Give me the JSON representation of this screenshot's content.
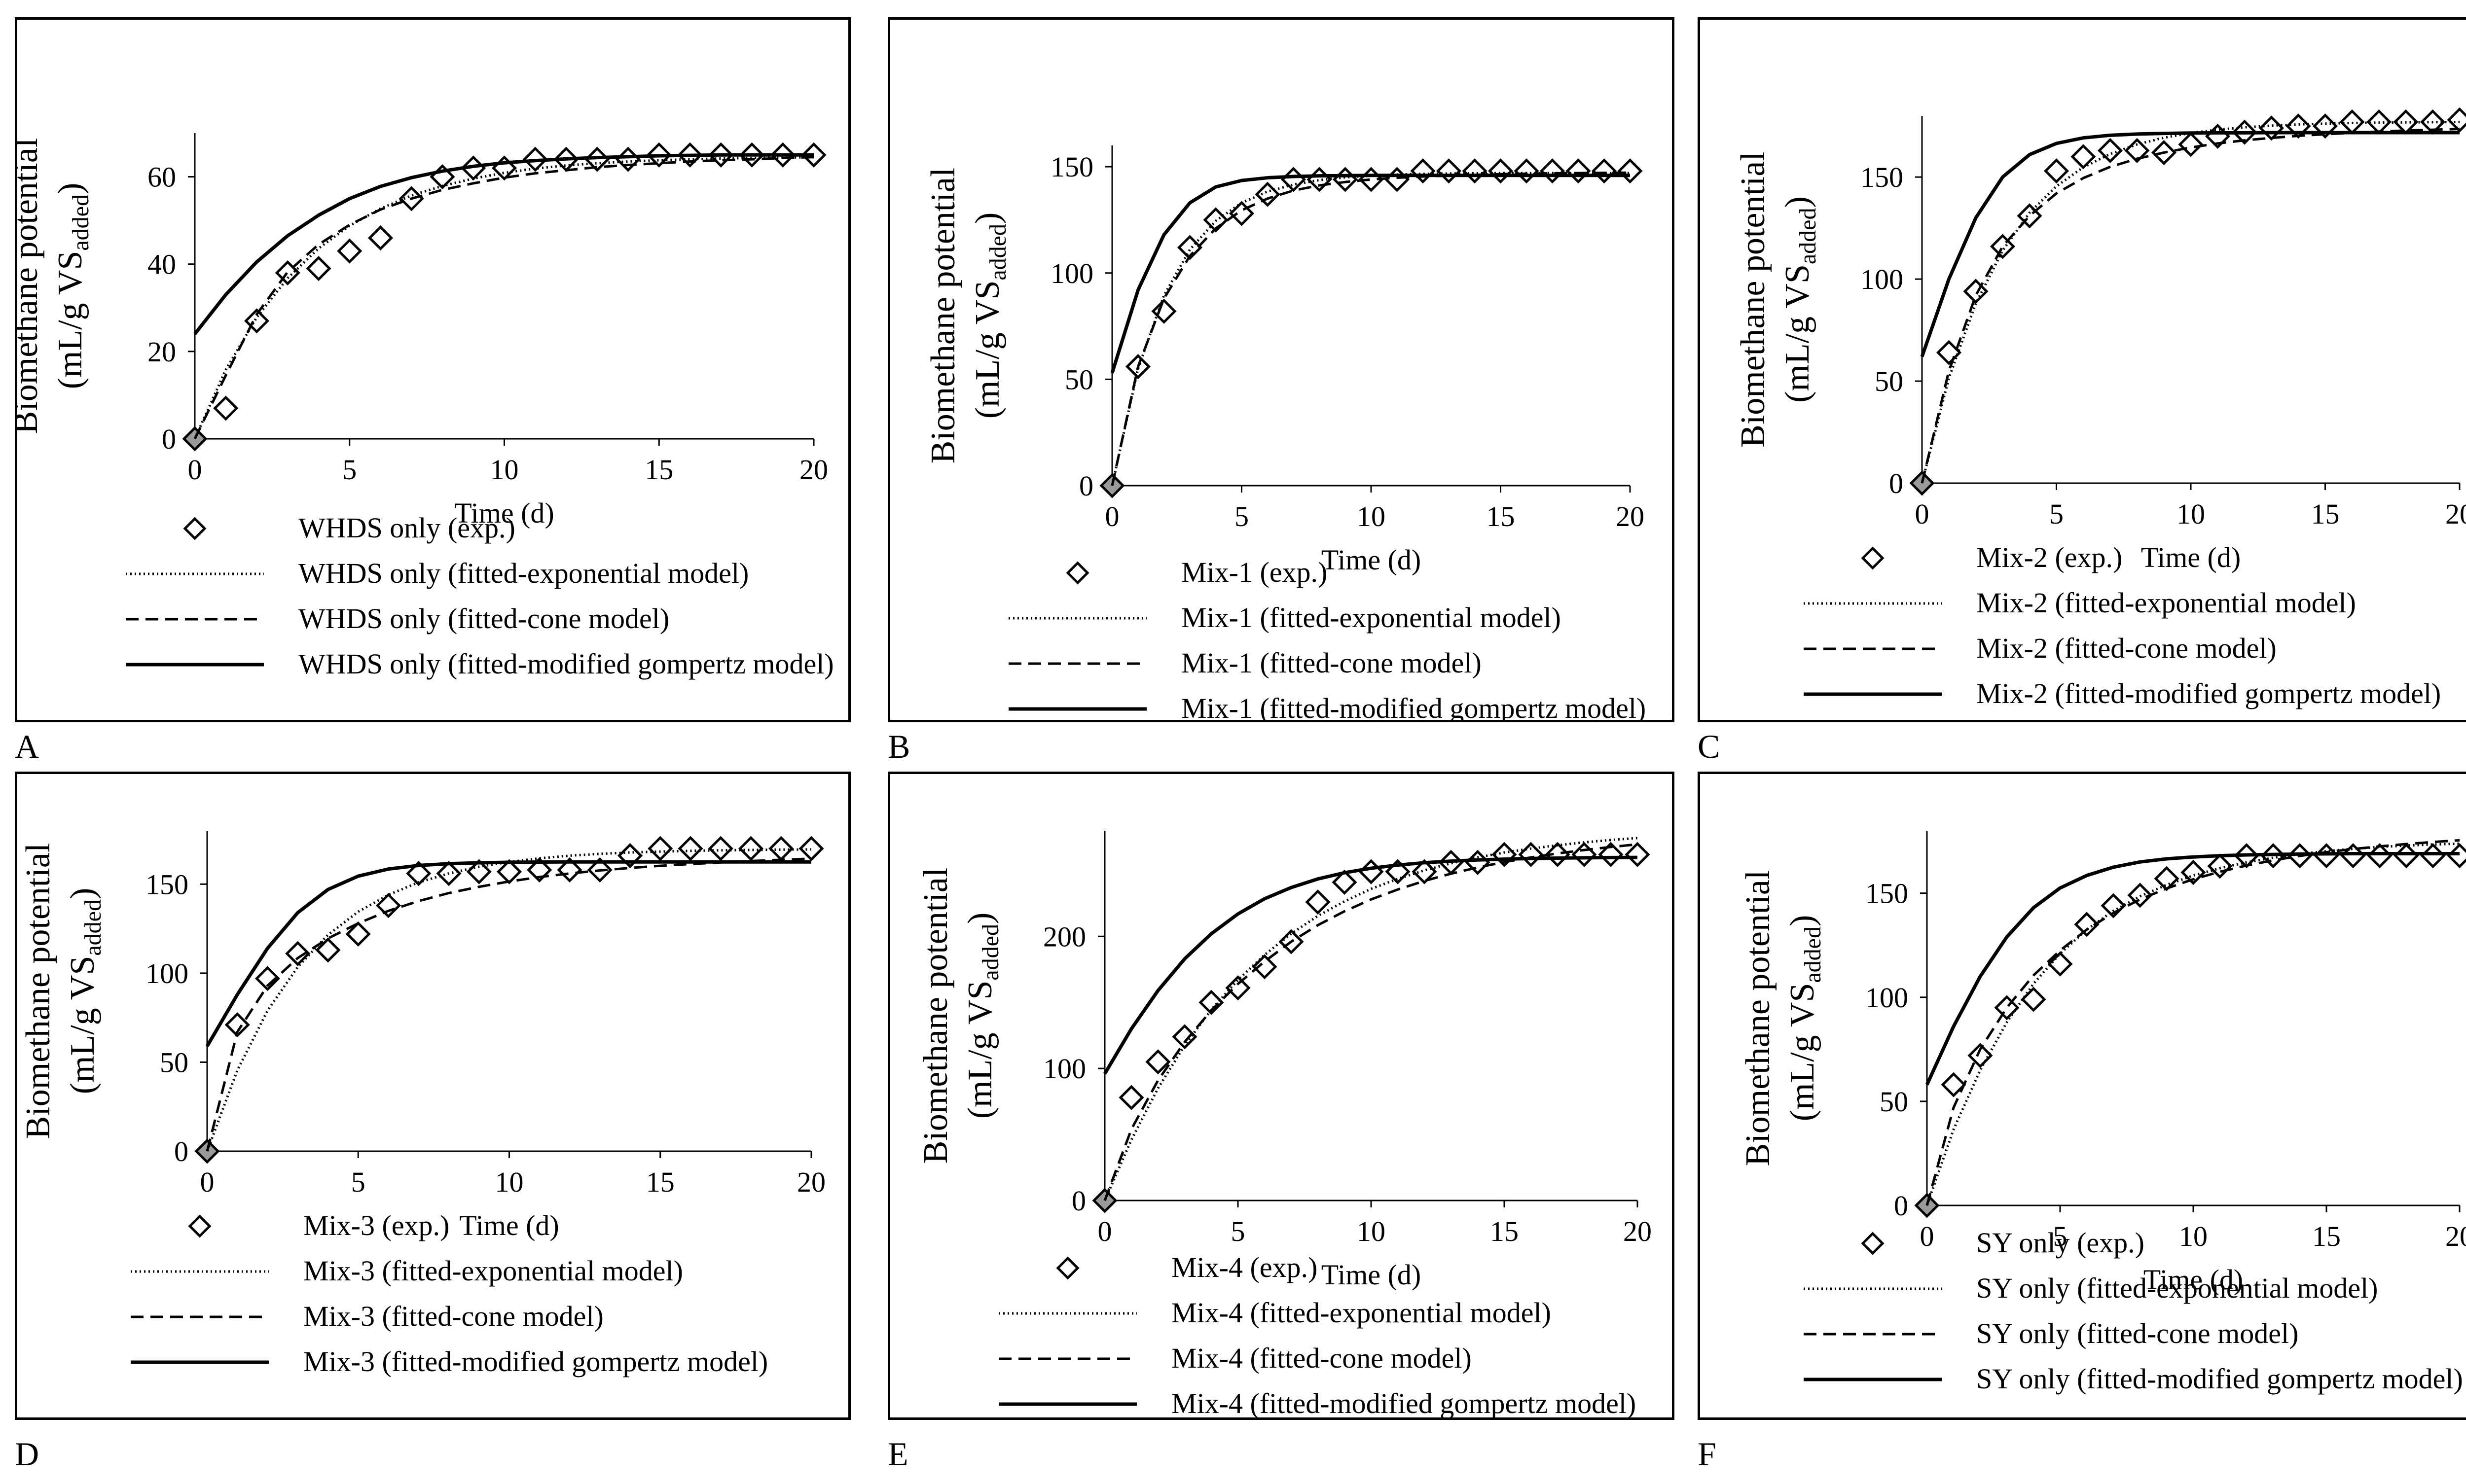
{
  "panel_labels": [
    "A",
    "B",
    "C",
    "D",
    "E",
    "F"
  ],
  "shared": {
    "ylabel_line1": "Biomethane potential",
    "ylabel_prefix": "(mL/g VS",
    "ylabel_sub": "added",
    "ylabel_suffix": ")",
    "xlabel": "Time (d)",
    "x_ticks": [
      "0",
      "5",
      "10",
      "15",
      "20"
    ]
  },
  "chart_data": [
    {
      "type": "scatter+line",
      "panel": "A",
      "xlabel": "Time (d)",
      "ylabel": "Biomethane potential (mL/g VSadded)",
      "xlim": [
        0,
        20
      ],
      "ylim": [
        0,
        70
      ],
      "y_ticks": [
        "0",
        "20",
        "40",
        "60"
      ],
      "x": [
        0,
        1,
        2,
        3,
        4,
        5,
        6,
        7,
        8,
        9,
        10,
        11,
        12,
        13,
        14,
        15,
        16,
        17,
        18,
        19,
        20
      ],
      "series": [
        {
          "name": "WHDS only (exp.)",
          "style": "diamond",
          "values": [
            0,
            7,
            27,
            38,
            39,
            43,
            46,
            55,
            60,
            62,
            62,
            64,
            64,
            64,
            64,
            65,
            65,
            65,
            65,
            65,
            65
          ]
        },
        {
          "name": "WHDS only (fitted-exponential model)",
          "style": "dotted",
          "values": [
            0,
            15.8,
            27.8,
            36.8,
            43.6,
            48.8,
            52.7,
            55.7,
            57.9,
            59.6,
            60.9,
            61.9,
            62.6,
            63.1,
            63.5,
            63.8,
            64.0,
            64.2,
            64.3,
            64.4,
            64.5
          ]
        },
        {
          "name": "WHDS only (fitted-cone model)",
          "style": "dashed",
          "values": [
            0,
            14.5,
            28.5,
            38.2,
            44.5,
            49,
            52.5,
            55,
            57,
            58.5,
            59.8,
            60.8,
            61.5,
            62.2,
            62.7,
            63.1,
            63.5,
            63.8,
            64,
            64.3,
            64.5
          ]
        },
        {
          "name": "WHDS only (fitted-modified gompertz model)",
          "style": "solid",
          "values": [
            24,
            33,
            40.5,
            46.5,
            51.2,
            55,
            57.8,
            59.8,
            61.3,
            62.4,
            63.2,
            63.7,
            64.1,
            64.4,
            64.6,
            64.8,
            64.9,
            65,
            65,
            65,
            65
          ]
        }
      ]
    },
    {
      "type": "scatter+line",
      "panel": "B",
      "xlabel": "Time (d)",
      "ylabel": "Biomethane potential (mL/g VSadded)",
      "xlim": [
        0,
        20
      ],
      "ylim": [
        0,
        160
      ],
      "y_ticks": [
        "0",
        "50",
        "100",
        "150"
      ],
      "x": [
        0,
        1,
        2,
        3,
        4,
        5,
        6,
        7,
        8,
        9,
        10,
        11,
        12,
        13,
        14,
        15,
        16,
        17,
        18,
        19,
        20
      ],
      "series": [
        {
          "name": "Mix-1 (exp.)",
          "style": "diamond",
          "values": [
            0,
            56,
            82,
            112,
            125,
            128,
            137,
            144,
            144,
            144,
            144,
            144,
            148,
            148,
            148,
            148,
            148,
            148,
            148,
            148,
            148
          ]
        },
        {
          "name": "Mix-1 (fitted-exponential model)",
          "style": "dotted",
          "values": [
            0,
            55,
            89.5,
            111,
            124.5,
            133,
            138.3,
            141.6,
            143.7,
            145,
            145.8,
            146.3,
            146.6,
            146.8,
            146.9,
            147,
            147,
            147,
            147,
            147,
            147
          ]
        },
        {
          "name": "Mix-1 (fitted-cone model)",
          "style": "dashed",
          "values": [
            0,
            56,
            88,
            108,
            121,
            129.5,
            135,
            138.8,
            141.2,
            142.8,
            144,
            144.8,
            145.4,
            145.8,
            146.2,
            146.5,
            146.7,
            146.9,
            147,
            147.1,
            147.2
          ]
        },
        {
          "name": "Mix-1 (fitted-modified gompertz model)",
          "style": "solid",
          "values": [
            53,
            92,
            118,
            133,
            140.5,
            143.5,
            144.8,
            145.4,
            145.7,
            145.8,
            145.9,
            145.9,
            145.9,
            145.9,
            145.9,
            145.9,
            145.9,
            145.9,
            145.9,
            145.9,
            145.9
          ]
        }
      ]
    },
    {
      "type": "scatter+line",
      "panel": "C",
      "xlabel": "Time (d)",
      "ylabel": "Biomethane potential (mL/g VSadded)",
      "xlim": [
        0,
        20
      ],
      "ylim": [
        0,
        180
      ],
      "y_ticks": [
        "0",
        "50",
        "100",
        "150"
      ],
      "x": [
        0,
        1,
        2,
        3,
        4,
        5,
        6,
        7,
        8,
        9,
        10,
        11,
        12,
        13,
        14,
        15,
        16,
        17,
        18,
        19,
        20
      ],
      "series": [
        {
          "name": "Mix-2 (exp.)",
          "style": "diamond",
          "values": [
            0,
            64,
            94,
            116,
            131,
            153,
            160,
            163,
            163,
            162,
            166,
            170,
            172,
            174,
            175,
            175,
            177,
            177,
            177,
            177,
            178
          ]
        },
        {
          "name": "Mix-2 (fitted-exponential model)",
          "style": "dotted",
          "values": [
            0,
            51.5,
            88,
            114,
            132.5,
            145.5,
            154.8,
            161.3,
            166,
            169.3,
            171.6,
            173.2,
            174.4,
            175.2,
            175.8,
            176.2,
            176.5,
            176.7,
            176.8,
            176.9,
            177
          ]
        },
        {
          "name": "Mix-2 (fitted-cone model)",
          "style": "dashed",
          "values": [
            0,
            55,
            92,
            116,
            131,
            142,
            149.5,
            155,
            159,
            162,
            164.5,
            166.5,
            168,
            169.2,
            170.2,
            171,
            171.7,
            172.3,
            172.8,
            173.2,
            173.6
          ]
        },
        {
          "name": "Mix-2 (fitted-modified gompertz model)",
          "style": "solid",
          "values": [
            62,
            100,
            130,
            150,
            161,
            166.5,
            169.2,
            170.5,
            171.1,
            171.4,
            171.6,
            171.7,
            171.7,
            171.8,
            171.8,
            171.8,
            171.8,
            171.8,
            171.8,
            171.8,
            171.8
          ]
        }
      ]
    },
    {
      "type": "scatter+line",
      "panel": "D",
      "xlabel": "Time (d)",
      "ylabel": "Biomethane potential (mL/g VSadded)",
      "xlim": [
        0,
        20
      ],
      "ylim": [
        0,
        180
      ],
      "y_ticks": [
        "0",
        "50",
        "100",
        "150"
      ],
      "x": [
        0,
        1,
        2,
        3,
        4,
        5,
        6,
        7,
        8,
        9,
        10,
        11,
        12,
        13,
        14,
        15,
        16,
        17,
        18,
        19,
        20
      ],
      "series": [
        {
          "name": "Mix-3 (exp.)",
          "style": "diamond",
          "values": [
            0,
            71,
            97,
            111,
            113,
            122,
            138,
            156,
            156,
            157,
            157,
            158,
            158,
            158,
            166,
            170,
            170,
            170,
            170,
            170,
            170
          ]
        },
        {
          "name": "Mix-3 (fitted-exponential model)",
          "style": "dotted",
          "values": [
            0,
            45.5,
            79,
            103.5,
            121.5,
            134.5,
            144,
            151,
            156,
            159.8,
            162.5,
            164.5,
            166,
            167,
            167.8,
            168.3,
            168.7,
            169,
            169.2,
            169.4,
            169.5
          ]
        },
        {
          "name": "Mix-3 (fitted-cone model)",
          "style": "dashed",
          "values": [
            0,
            67,
            93,
            108.5,
            119.5,
            128,
            135,
            140.5,
            145,
            148.5,
            151.5,
            154,
            156,
            157.7,
            159.1,
            160.3,
            161.3,
            162.2,
            163,
            163.7,
            164.3
          ]
        },
        {
          "name": "Mix-3 (fitted-modified gompertz model)",
          "style": "solid",
          "values": [
            59,
            88,
            114,
            134,
            147,
            154.5,
            158.5,
            160.5,
            161.5,
            162,
            162.3,
            162.4,
            162.5,
            162.5,
            162.5,
            162.5,
            162.5,
            162.5,
            162.5,
            162.5,
            162.5
          ]
        }
      ]
    },
    {
      "type": "scatter+line",
      "panel": "E",
      "xlabel": "Time (d)",
      "ylabel": "Biomethane potential (mL/g VSadded)",
      "xlim": [
        0,
        20
      ],
      "ylim": [
        0,
        280
      ],
      "y_ticks": [
        "0",
        "100",
        "200"
      ],
      "x": [
        0,
        1,
        2,
        3,
        4,
        5,
        6,
        7,
        8,
        9,
        10,
        11,
        12,
        13,
        14,
        15,
        16,
        17,
        18,
        19,
        20
      ],
      "series": [
        {
          "name": "Mix-4 (exp.)",
          "style": "diamond",
          "values": [
            0,
            78,
            105,
            124,
            150,
            161,
            177,
            196,
            226,
            241,
            249,
            249,
            249,
            256,
            256,
            262,
            262,
            262,
            262,
            262,
            262
          ]
        },
        {
          "name": "Mix-4 (fitted-exponential model)",
          "style": "dotted",
          "values": [
            0,
            46,
            85,
            117.5,
            144.5,
            167,
            186,
            202,
            215.5,
            226.5,
            236,
            243.5,
            250,
            255.3,
            259.8,
            263.5,
            266.5,
            269,
            271.2,
            273,
            274.5
          ]
        },
        {
          "name": "Mix-4 (fitted-cone model)",
          "style": "dashed",
          "values": [
            0,
            54,
            91,
            120,
            144,
            164,
            181,
            196,
            208.5,
            219,
            228,
            235.5,
            242,
            247.5,
            252.2,
            256.3,
            259.8,
            262.8,
            265.4,
            267.7,
            269.7
          ]
        },
        {
          "name": "Mix-4 (fitted-modified gompertz model)",
          "style": "solid",
          "values": [
            96,
            130,
            159,
            183,
            202,
            217,
            228.5,
            237,
            243.5,
            248.2,
            251.6,
            254,
            255.8,
            257,
            257.9,
            258.5,
            259,
            259.3,
            259.5,
            259.7,
            259.8
          ]
        }
      ]
    },
    {
      "type": "scatter+line",
      "panel": "F",
      "xlabel": "Time (d)",
      "ylabel": "Biomethane potential (mL/g VSadded)",
      "xlim": [
        0,
        20
      ],
      "ylim": [
        0,
        180
      ],
      "y_ticks": [
        "0",
        "50",
        "100",
        "150"
      ],
      "x": [
        0,
        1,
        2,
        3,
        4,
        5,
        6,
        7,
        8,
        9,
        10,
        11,
        12,
        13,
        14,
        15,
        16,
        17,
        18,
        19,
        20
      ],
      "series": [
        {
          "name": "SY only (exp.)",
          "style": "diamond",
          "values": [
            0,
            58,
            72,
            95,
            99,
            116,
            135,
            144,
            149,
            157,
            160,
            163,
            168,
            168,
            168,
            168,
            168,
            168,
            168,
            168,
            168
          ]
        },
        {
          "name": "SY only (fitted-exponential model)",
          "style": "dotted",
          "values": [
            0,
            36.5,
            65,
            88,
            106.5,
            121,
            132.5,
            141.5,
            148.5,
            154,
            158.5,
            162,
            164.8,
            167,
            168.8,
            170.2,
            171.3,
            172.2,
            172.9,
            173.4,
            173.8
          ]
        },
        {
          "name": "SY only (fitted-cone model)",
          "style": "dashed",
          "values": [
            0,
            47,
            75,
            95,
            110.5,
            122.5,
            132.5,
            140.5,
            147,
            152.3,
            156.7,
            160.3,
            163.3,
            165.8,
            167.9,
            169.7,
            171.2,
            172.5,
            173.6,
            174.6,
            175.4
          ]
        },
        {
          "name": "SY only (fitted-modified gompertz model)",
          "style": "solid",
          "values": [
            58,
            86,
            110,
            129,
            143,
            152.5,
            158.5,
            162.5,
            165,
            166.5,
            167.4,
            168,
            168.4,
            168.6,
            168.8,
            168.9,
            169,
            169,
            169,
            169,
            169
          ]
        }
      ]
    }
  ]
}
